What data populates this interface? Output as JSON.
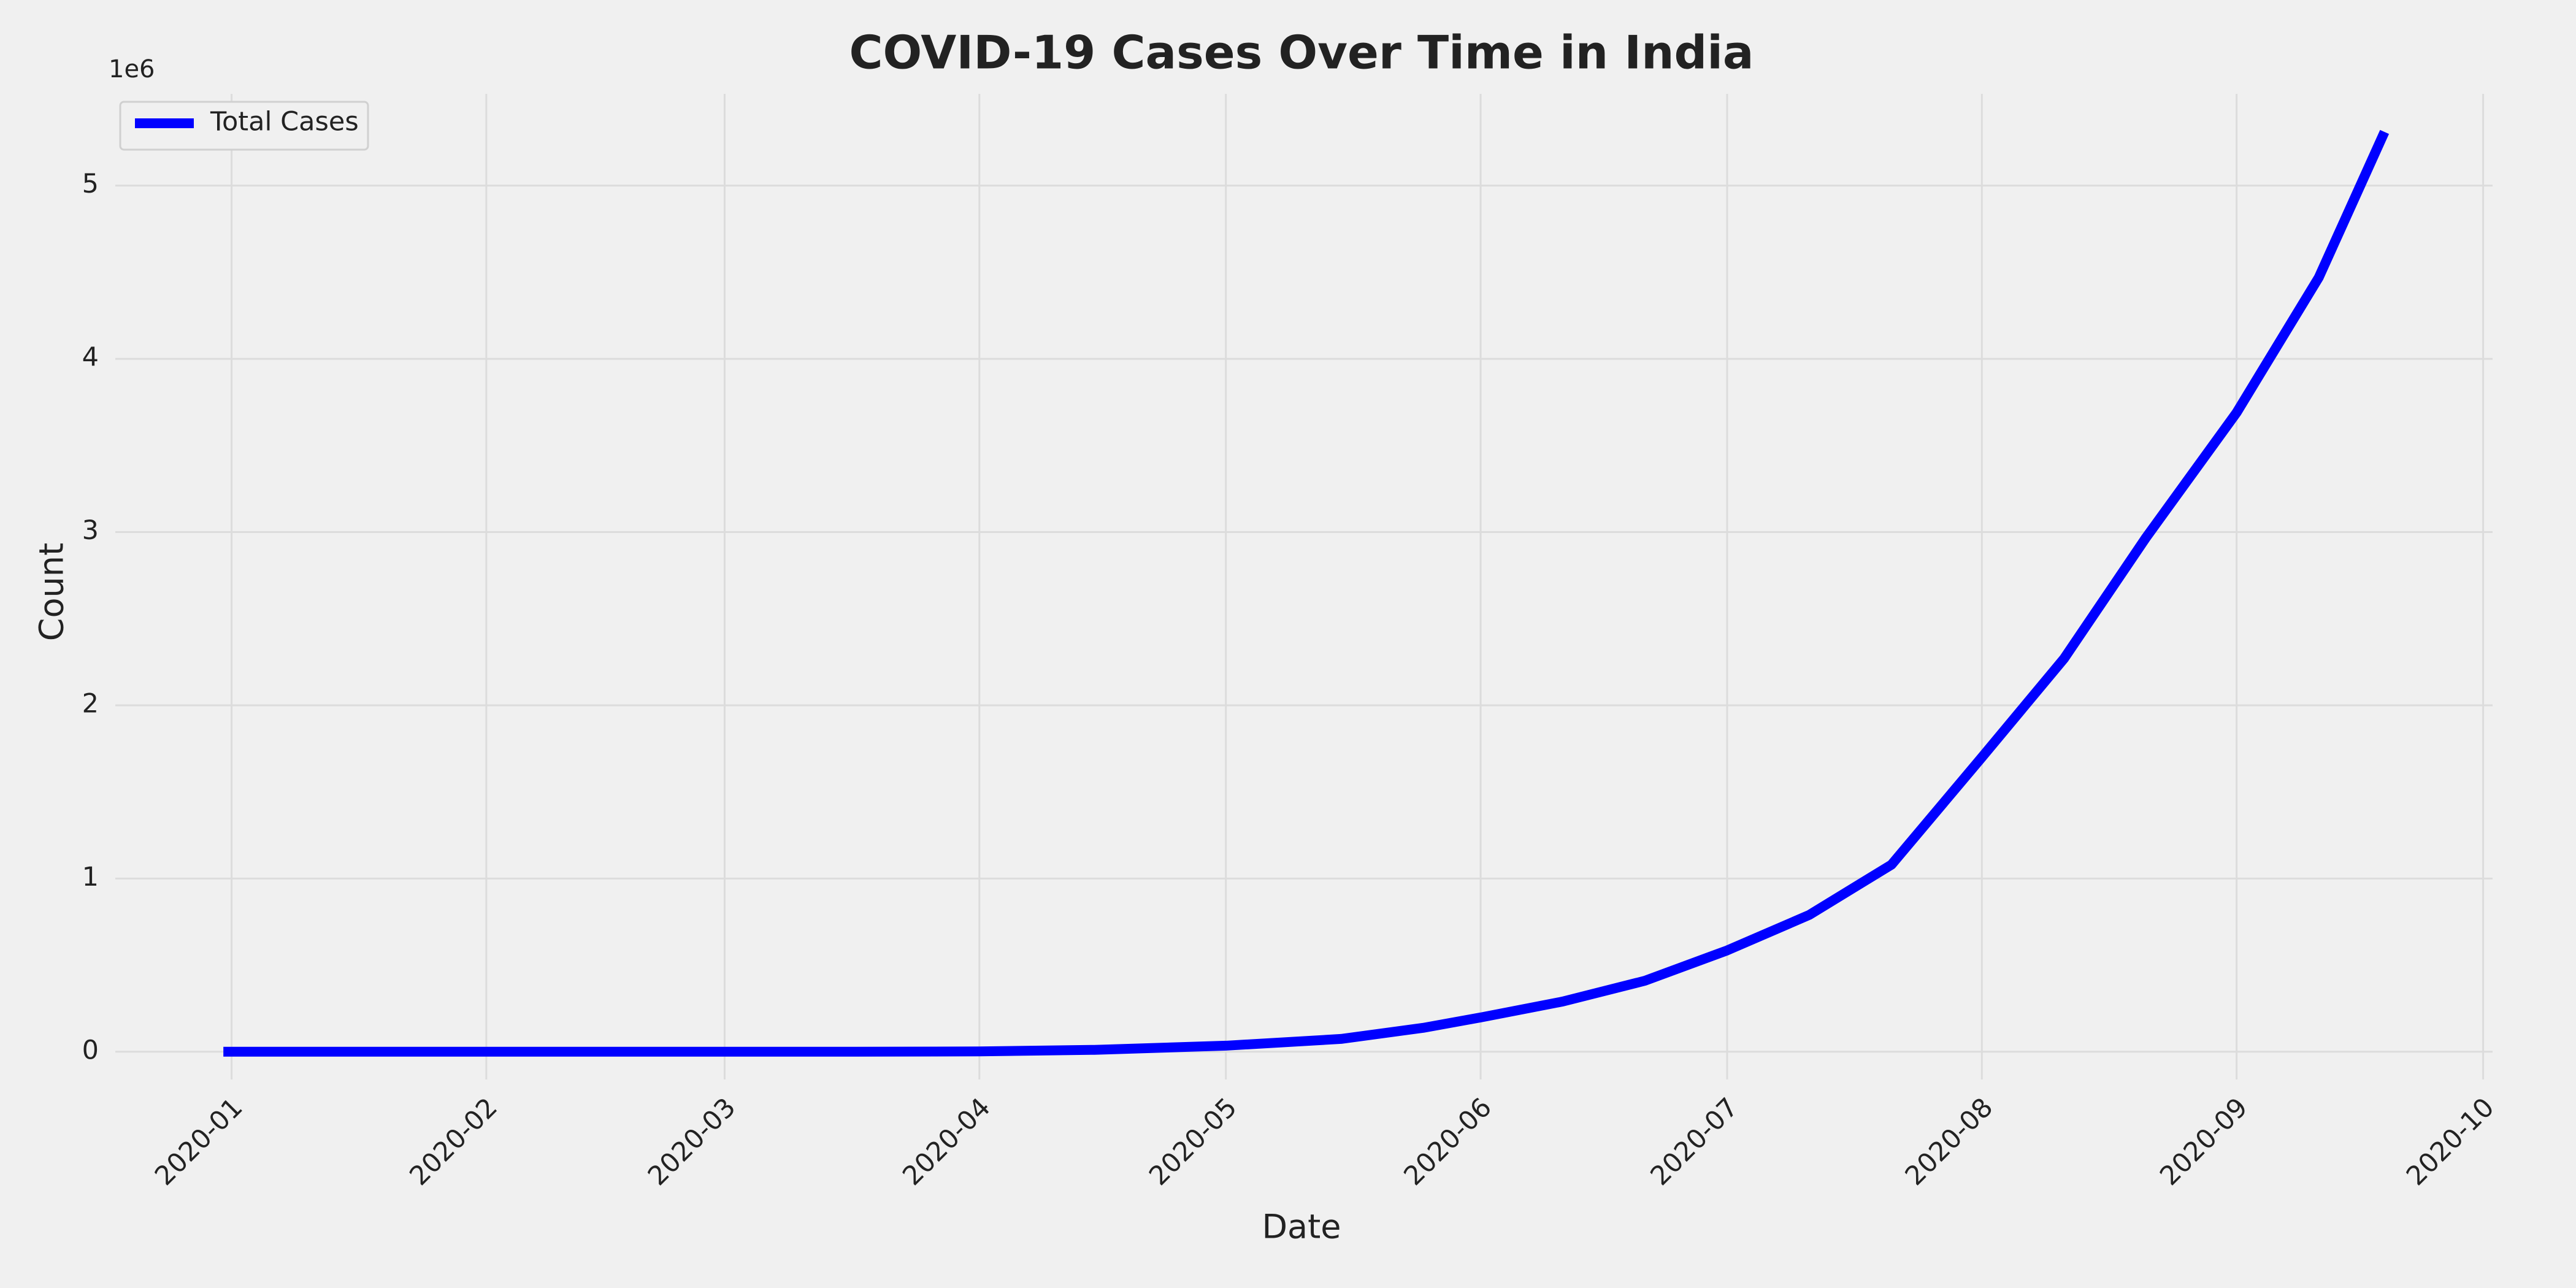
{
  "chart_data": {
    "type": "line",
    "title": "COVID-19 Cases Over Time in India",
    "xlabel": "Date",
    "ylabel": "Count",
    "y_offset_label": "1e6",
    "x": [
      -1,
      30,
      60,
      75,
      91,
      105,
      121,
      135,
      145,
      152,
      162,
      172,
      182,
      192,
      202,
      213,
      223,
      233,
      244,
      254,
      262
    ],
    "series": [
      {
        "name": "Total Cases",
        "color": "#0000ff",
        "values": [
          0,
          0,
          0,
          0.0001,
          0.0019,
          0.011,
          0.035,
          0.074,
          0.138,
          0.198,
          0.29,
          0.41,
          0.585,
          0.79,
          1.08,
          1.7,
          2.27,
          2.97,
          3.69,
          4.47,
          5.31
        ]
      }
    ],
    "xlim": [
      -14.15,
      275.15
    ],
    "xticks": [
      {
        "value": 0,
        "label": "2020-01"
      },
      {
        "value": 31,
        "label": "2020-02"
      },
      {
        "value": 60,
        "label": "2020-03"
      },
      {
        "value": 91,
        "label": "2020-04"
      },
      {
        "value": 121,
        "label": "2020-05"
      },
      {
        "value": 152,
        "label": "2020-06"
      },
      {
        "value": 182,
        "label": "2020-07"
      },
      {
        "value": 213,
        "label": "2020-08"
      },
      {
        "value": 244,
        "label": "2020-09"
      },
      {
        "value": 274,
        "label": "2020-10"
      }
    ],
    "ylim": [
      -0.16,
      5.53
    ],
    "yticks": [
      0,
      1,
      2,
      3,
      4,
      5
    ],
    "grid": true,
    "legend": "upper left"
  }
}
